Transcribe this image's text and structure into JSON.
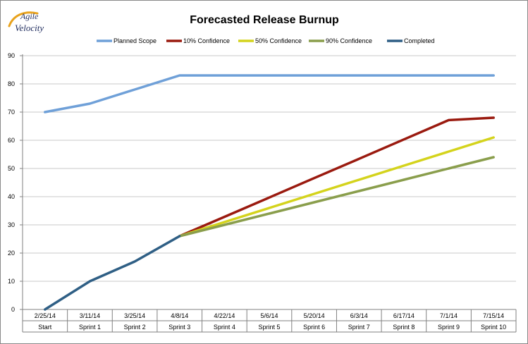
{
  "logo": {
    "line1": "Agile",
    "line2": "Velocity",
    "swoosh_color": "#e8a21c",
    "text_color": "#1f2c5e"
  },
  "chart_data": {
    "type": "line",
    "title": "Forecasted Release Burnup",
    "dates": [
      "2/25/14",
      "3/11/14",
      "3/25/14",
      "4/8/14",
      "4/22/14",
      "5/6/14",
      "5/20/14",
      "6/3/14",
      "6/17/14",
      "7/1/14",
      "7/15/14"
    ],
    "sprints": [
      "Start",
      "Sprint 1",
      "Sprint 2",
      "Sprint 3",
      "Sprint 4",
      "Sprint 5",
      "Sprint 6",
      "Sprint 7",
      "Sprint 8",
      "Sprint 9",
      "Sprint 10"
    ],
    "ylim": [
      0,
      90
    ],
    "yticks": [
      0,
      10,
      20,
      30,
      40,
      50,
      60,
      70,
      80,
      90
    ],
    "grid": "horizontal",
    "legend_position": "top",
    "series": [
      {
        "name": "Planned Scope",
        "color": "#6fa0d8",
        "values": [
          70,
          73,
          78,
          83,
          83,
          83,
          83,
          83,
          83,
          83,
          83
        ]
      },
      {
        "name": "10% Confidence",
        "color": "#9a1a0f",
        "values": [
          null,
          null,
          null,
          26,
          32.86,
          39.71,
          46.57,
          53.43,
          60.29,
          67.14,
          68
        ]
      },
      {
        "name": "50% Confidence",
        "color": "#d4d31c",
        "values": [
          null,
          null,
          null,
          26,
          31,
          36,
          41,
          46,
          51,
          56,
          61
        ]
      },
      {
        "name": "90% Confidence",
        "color": "#8a9e4c",
        "values": [
          null,
          null,
          null,
          26,
          30,
          34,
          38,
          42,
          46,
          50,
          54
        ]
      },
      {
        "name": "Completed",
        "color": "#2f5f85",
        "values": [
          0,
          10,
          17,
          26,
          null,
          null,
          null,
          null,
          null,
          null,
          null
        ]
      }
    ]
  }
}
